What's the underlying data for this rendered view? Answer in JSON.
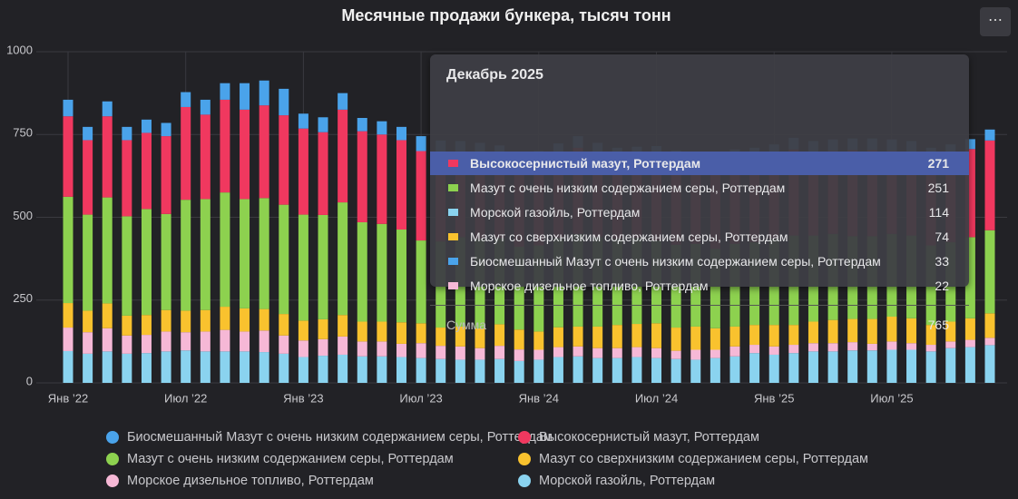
{
  "chart_data": {
    "type": "stacked-bar",
    "title": "Месячные продажи бункера, тысяч тонн",
    "categories": [
      "Янв ’22",
      null,
      null,
      null,
      null,
      null,
      "Июл ’22",
      null,
      null,
      null,
      null,
      null,
      "Янв ’23",
      null,
      null,
      null,
      null,
      null,
      "Июл ’23",
      null,
      null,
      null,
      null,
      null,
      "Янв ’24",
      null,
      null,
      null,
      null,
      null,
      "Июл ’24",
      null,
      null,
      null,
      null,
      null,
      "Янв ’25",
      null,
      null,
      null,
      null,
      null,
      "Июл ’25",
      null,
      null,
      null,
      null,
      null
    ],
    "ylim": [
      0,
      1000
    ],
    "yticks": [
      0,
      250,
      500,
      750,
      {
        "value": 1000,
        "label": "1000"
      }
    ],
    "grid": true,
    "series": [
      {
        "name": "Биосмешанный Мазут с очень низким содержанием серы, Роттердам",
        "color": "#4aa3ea",
        "values": [
          50,
          40,
          45,
          40,
          40,
          40,
          45,
          45,
          50,
          80,
          75,
          80,
          45,
          45,
          50,
          40,
          40,
          40,
          45,
          45,
          40,
          40,
          40,
          40,
          35,
          35,
          35,
          35,
          35,
          35,
          35,
          35,
          35,
          35,
          35,
          35,
          35,
          35,
          35,
          35,
          35,
          35,
          35,
          35,
          35,
          35,
          30,
          33
        ]
      },
      {
        "name": "Высокосернистый мазут, Роттердам",
        "color": "#f0385f",
        "values": [
          243,
          225,
          245,
          230,
          230,
          235,
          280,
          255,
          280,
          270,
          280,
          270,
          260,
          250,
          280,
          275,
          270,
          270,
          270,
          260,
          250,
          250,
          240,
          240,
          250,
          250,
          260,
          250,
          240,
          240,
          250,
          250,
          240,
          240,
          250,
          250,
          250,
          260,
          250,
          250,
          260,
          260,
          250,
          250,
          260,
          260,
          266,
          271
        ]
      },
      {
        "name": "Мазут с очень низким содержанием серы, Роттердам",
        "color": "#8dd14f",
        "values": [
          321,
          290,
          320,
          300,
          320,
          290,
          335,
          335,
          345,
          330,
          335,
          330,
          320,
          315,
          340,
          300,
          295,
          280,
          250,
          260,
          270,
          270,
          260,
          250,
          260,
          270,
          280,
          270,
          260,
          260,
          250,
          250,
          250,
          240,
          250,
          250,
          260,
          270,
          260,
          260,
          250,
          250,
          250,
          250,
          240,
          240,
          245,
          251
        ]
      },
      {
        "name": "Мазут со сверхнизким содержанием серы, Роттердам",
        "color": "#f9c22e",
        "values": [
          74,
          65,
          75,
          60,
          60,
          65,
          65,
          65,
          70,
          70,
          65,
          65,
          60,
          60,
          65,
          60,
          60,
          65,
          60,
          55,
          60,
          60,
          65,
          60,
          55,
          60,
          60,
          65,
          70,
          70,
          75,
          70,
          70,
          65,
          60,
          60,
          65,
          60,
          65,
          70,
          70,
          75,
          75,
          75,
          60,
          60,
          65,
          74
        ]
      },
      {
        "name": "Морское дизельное топливо, Роттердам",
        "color": "#f6b8d6",
        "values": [
          71,
          65,
          70,
          55,
          55,
          60,
          55,
          60,
          65,
          60,
          65,
          55,
          50,
          50,
          55,
          45,
          45,
          40,
          45,
          40,
          40,
          35,
          40,
          35,
          30,
          30,
          30,
          30,
          30,
          30,
          30,
          25,
          30,
          25,
          30,
          25,
          25,
          25,
          25,
          25,
          25,
          20,
          25,
          20,
          20,
          20,
          22,
          22
        ]
      },
      {
        "name": "Морской газойль, Роттердам",
        "color": "#8ad3ef",
        "values": [
          96,
          88,
          95,
          88,
          90,
          95,
          98,
          95,
          95,
          95,
          93,
          88,
          78,
          82,
          85,
          80,
          80,
          78,
          75,
          72,
          70,
          70,
          72,
          66,
          70,
          78,
          80,
          75,
          75,
          78,
          75,
          72,
          70,
          75,
          80,
          90,
          85,
          90,
          95,
          95,
          98,
          98,
          100,
          100,
          95,
          105,
          108,
          114
        ]
      }
    ],
    "tooltip": {
      "title": "Декабрь 2025",
      "total_label": "Сумма",
      "total": 765
    }
  }
}
